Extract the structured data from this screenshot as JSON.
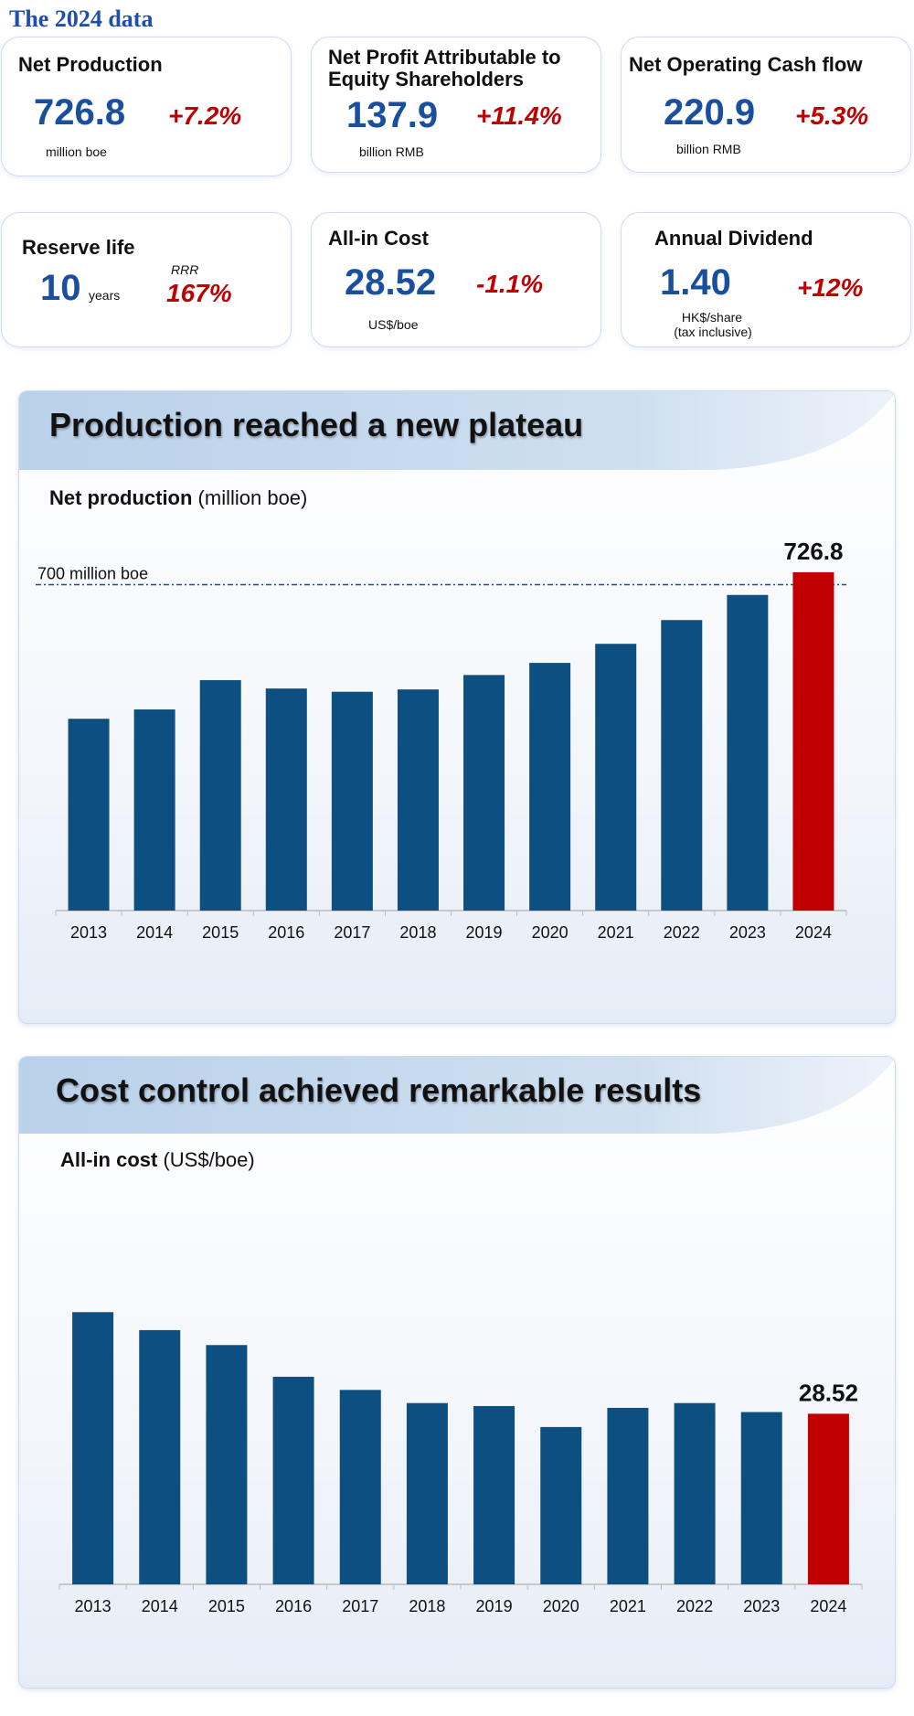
{
  "page_title": "The 2024 data",
  "cards": {
    "net_production": {
      "label": "Net Production",
      "value": "726.8",
      "unit": "million boe",
      "change": "+7.2%"
    },
    "net_profit": {
      "label_line1": "Net Profit Attributable to",
      "label_line2": "Equity Shareholders",
      "value": "137.9",
      "unit": "billion RMB",
      "change": "+11.4%"
    },
    "cash_flow": {
      "label": "Net Operating Cash flow",
      "value": "220.9",
      "unit": "billion RMB",
      "change": "+5.3%"
    },
    "reserve_life": {
      "label": "Reserve life",
      "value": "10",
      "unit": "years",
      "rrr_label": "RRR",
      "rrr_value": "167%"
    },
    "all_in_cost": {
      "label": "All-in Cost",
      "value": "28.52",
      "unit": "US$/boe",
      "change": "-1.1%"
    },
    "dividend": {
      "label": "Annual Dividend",
      "value": "1.40",
      "unit_line1": "HK$/share",
      "unit_line2": "(tax inclusive)",
      "change": "+12%"
    }
  },
  "production_panel": {
    "heading": "Production reached a new plateau",
    "sub_bold": "Net production",
    "sub_rest": " (million boe)"
  },
  "cost_panel": {
    "heading": "Cost control achieved remarkable results",
    "sub_bold": "All-in cost",
    "sub_rest": " (US$/boe)"
  },
  "colors": {
    "bar": "#0d4f80",
    "highlight": "#c00000",
    "refline": "#1a4fa0"
  },
  "chart_data": [
    {
      "type": "bar",
      "title": "Net production (million boe)",
      "categories": [
        "2013",
        "2014",
        "2015",
        "2016",
        "2017",
        "2018",
        "2019",
        "2020",
        "2021",
        "2022",
        "2023",
        "2024"
      ],
      "values": [
        412,
        432,
        495,
        477,
        470,
        475,
        506,
        532,
        573,
        624,
        678,
        726.8
      ],
      "highlight_last": true,
      "highlight_label": "726.8",
      "reference_line": {
        "value": 700,
        "label": "700 million boe"
      },
      "ylim": [
        0,
        760
      ]
    },
    {
      "type": "bar",
      "title": "All-in cost (US$/boe)",
      "categories": [
        "2013",
        "2014",
        "2015",
        "2016",
        "2017",
        "2018",
        "2019",
        "2020",
        "2021",
        "2022",
        "2023",
        "2024"
      ],
      "values": [
        45.5,
        42.5,
        40.0,
        34.7,
        32.5,
        30.3,
        29.8,
        26.3,
        29.5,
        30.3,
        28.8,
        28.52
      ],
      "highlight_last": true,
      "highlight_label": "28.52",
      "ylim": [
        0,
        46
      ]
    }
  ]
}
